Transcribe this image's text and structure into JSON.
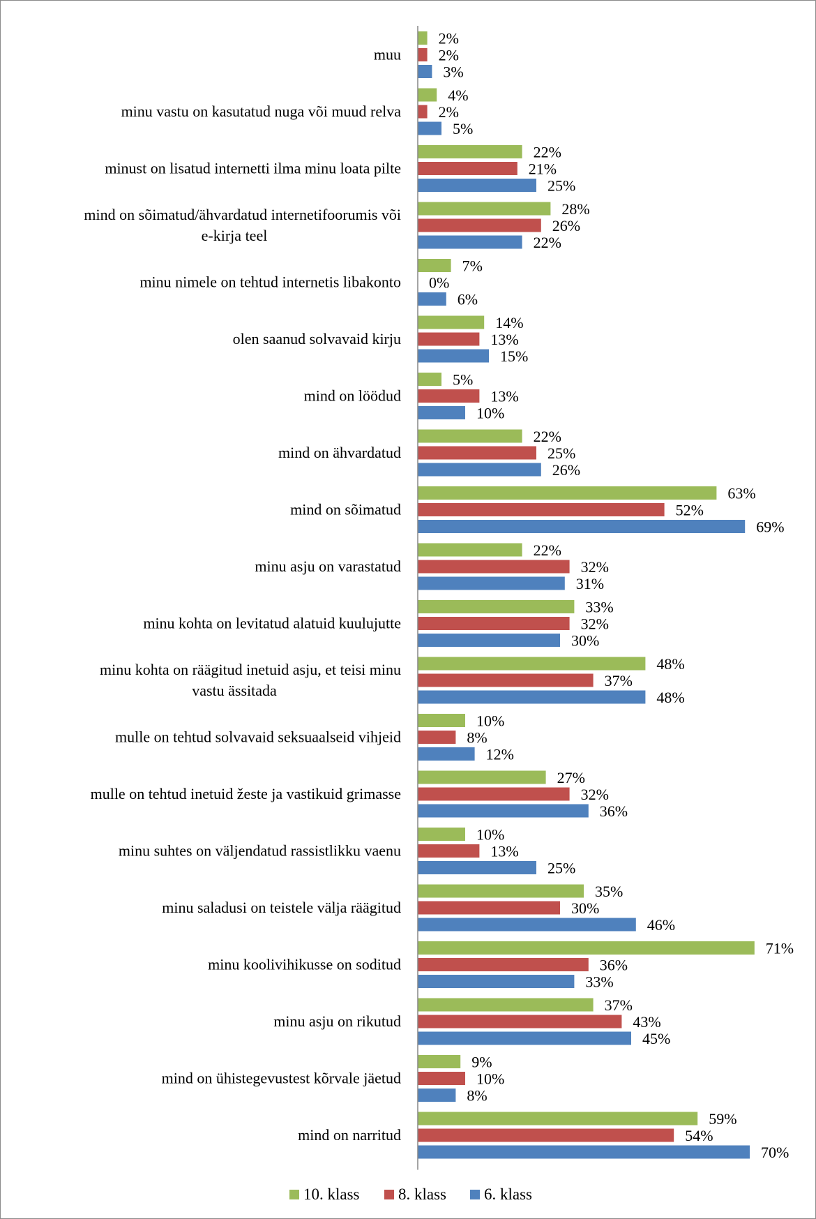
{
  "colors": {
    "10. klass": "#9bbb59",
    "8. klass": "#c0504d",
    "6. klass": "#4f81bd"
  },
  "chart_data": {
    "type": "bar",
    "orientation": "horizontal",
    "title": "",
    "xlabel": "",
    "ylabel": "",
    "xlim": [
      0,
      72
    ],
    "grid": false,
    "legend_position": "bottom",
    "categories": [
      [
        "muu"
      ],
      [
        "minu vastu on kasutatud nuga või muud relva"
      ],
      [
        "minust on lisatud internetti ilma minu loata pilte"
      ],
      [
        "mind on sõimatud/ähvardatud internetifoorumis või",
        "e-kirja teel"
      ],
      [
        "minu nimele on tehtud internetis libakonto"
      ],
      [
        "olen saanud solvavaid kirju"
      ],
      [
        "mind on löödud"
      ],
      [
        "mind on ähvardatud"
      ],
      [
        "mind on sõimatud"
      ],
      [
        "minu asju on varastatud"
      ],
      [
        "minu kohta on levitatud alatuid kuulujutte"
      ],
      [
        "minu kohta on räägitud inetuid asju, et teisi minu",
        "vastu ässitada"
      ],
      [
        "mulle on tehtud solvavaid seksuaalseid vihjeid"
      ],
      [
        "mulle on tehtud inetuid žeste ja vastikuid grimasse"
      ],
      [
        "minu suhtes on väljendatud rassistlikku vaenu"
      ],
      [
        "minu saladusi on teistele välja räägitud"
      ],
      [
        "minu koolivihikusse on soditud"
      ],
      [
        "minu asju on rikutud"
      ],
      [
        "mind on ühistegevustest kõrvale jäetud"
      ],
      [
        "mind on narritud"
      ]
    ],
    "series": [
      {
        "name": "10. klass",
        "values": [
          2,
          4,
          22,
          28,
          7,
          14,
          5,
          22,
          63,
          22,
          33,
          48,
          10,
          27,
          10,
          35,
          71,
          37,
          9,
          59
        ]
      },
      {
        "name": "8. klass",
        "values": [
          2,
          2,
          21,
          26,
          0,
          13,
          13,
          25,
          52,
          32,
          32,
          37,
          8,
          32,
          13,
          30,
          36,
          43,
          10,
          54
        ]
      },
      {
        "name": "6. klass",
        "values": [
          3,
          5,
          25,
          22,
          6,
          15,
          10,
          26,
          69,
          31,
          30,
          48,
          12,
          36,
          25,
          46,
          33,
          45,
          8,
          70
        ]
      }
    ],
    "value_suffix": "%"
  }
}
